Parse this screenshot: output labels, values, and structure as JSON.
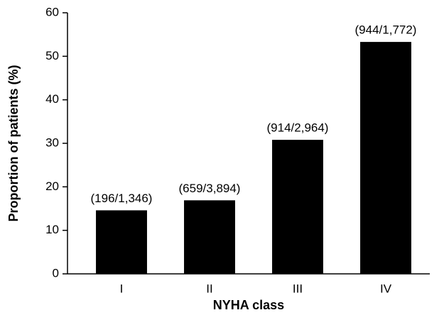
{
  "chart_data": {
    "type": "bar",
    "categories": [
      "I",
      "II",
      "III",
      "IV"
    ],
    "values": [
      14.6,
      16.9,
      30.8,
      53.3
    ],
    "annotations": [
      "(196/1,346)",
      "(659/3,894)",
      "(914/2,964)",
      "(944/1,772)"
    ],
    "color": "#000000",
    "x_label": "NYHA class",
    "y_label": "Proportion of patients (%)",
    "ylim": [
      0,
      60
    ],
    "yticks": [
      0,
      10,
      20,
      30,
      40,
      50,
      60
    ],
    "grid": false
  }
}
